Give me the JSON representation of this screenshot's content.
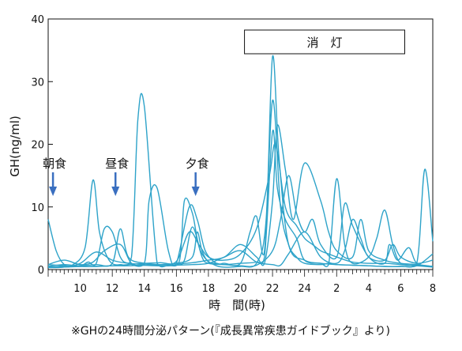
{
  "chart_data": {
    "type": "line",
    "ylabel": "GH(ng/ml)",
    "xlabel": "時　間(時)",
    "caption": "※GHの24時間分泌パターン(『成長異常疾患ガイドブック』より)",
    "ylim": [
      0,
      40
    ],
    "xlim": [
      8,
      32
    ],
    "y_ticks": [
      "0",
      "10",
      "20",
      "30",
      "40"
    ],
    "x_ticks": [
      {
        "hour": 10,
        "label": "10"
      },
      {
        "hour": 12,
        "label": "12"
      },
      {
        "hour": 14,
        "label": "14"
      },
      {
        "hour": 16,
        "label": "16"
      },
      {
        "hour": 18,
        "label": "18"
      },
      {
        "hour": 20,
        "label": "20"
      },
      {
        "hour": 22,
        "label": "22"
      },
      {
        "hour": 24,
        "label": "24"
      },
      {
        "hour": 26,
        "label": "2"
      },
      {
        "hour": 28,
        "label": "4"
      },
      {
        "hour": 30,
        "label": "6"
      },
      {
        "hour": 32,
        "label": "8"
      }
    ],
    "lights_out": {
      "label": "消　灯",
      "start": 20.25,
      "end": 30.25
    },
    "meals": [
      {
        "label": "朝食",
        "hour": 8.3
      },
      {
        "label": "昼食",
        "hour": 12.2
      },
      {
        "label": "夕食",
        "hour": 17.2
      }
    ],
    "line_color": "#2ea3c9",
    "arrow_color": "#3a6fc0",
    "series": [
      {
        "x": [
          8,
          8.5,
          9,
          9.5,
          10.3,
          10.8,
          11.2,
          11.8,
          12.5,
          13.2,
          13.6,
          14,
          14.8,
          15.5,
          16.2,
          16.5,
          17,
          17.5,
          18.5,
          20,
          21,
          21.6,
          22,
          22.4,
          23,
          24,
          25,
          26,
          27,
          28,
          29,
          30,
          31,
          32
        ],
        "y": [
          8,
          3,
          0.8,
          0.7,
          3.5,
          14.3,
          6,
          1.5,
          0.8,
          2,
          24,
          26,
          1,
          0.7,
          1.5,
          11,
          9,
          3,
          0.6,
          0.5,
          1,
          8,
          34,
          18,
          4,
          1.5,
          1,
          0.8,
          0.7,
          0.6,
          0.5,
          0.5,
          0.6,
          2.5
        ]
      },
      {
        "x": [
          8,
          9,
          10,
          10.5,
          11,
          11.5,
          12,
          12.5,
          13,
          14,
          14.3,
          14.8,
          15.5,
          16,
          16.8,
          17.3,
          17.8,
          18.5,
          19,
          20,
          20.6,
          21,
          21.5,
          22,
          22.5,
          23,
          23.5,
          24,
          25,
          25.5,
          26,
          27,
          28,
          29,
          30,
          31,
          31.5,
          32
        ],
        "y": [
          0.5,
          0.8,
          0.6,
          1.2,
          1,
          6.5,
          6,
          2,
          1,
          1,
          11,
          13,
          3,
          1,
          10,
          8,
          3,
          1,
          1,
          1,
          6,
          8.5,
          3,
          27,
          10,
          4,
          2,
          1,
          0.8,
          1,
          0.8,
          0.7,
          0.6,
          0.5,
          0.5,
          1,
          16,
          4.5
        ]
      },
      {
        "x": [
          8,
          9,
          10,
          11,
          12,
          12.5,
          13,
          14,
          15,
          16,
          17,
          17.3,
          17.6,
          18,
          18.5,
          19,
          20,
          21,
          21.5,
          22,
          22.3,
          22.8,
          23.5,
          24,
          25,
          25.5,
          26,
          26.5,
          27,
          28,
          28.5,
          29,
          29.5,
          30,
          31,
          32
        ],
        "y": [
          0.4,
          0.5,
          0.6,
          0.8,
          1,
          6.5,
          2,
          1,
          0.8,
          1,
          2,
          6,
          3,
          1.2,
          1,
          0.8,
          1,
          1.2,
          2,
          22,
          13,
          8,
          5,
          1.5,
          1,
          0.8,
          14.5,
          4,
          1,
          2,
          5,
          9.5,
          4,
          1,
          0.7,
          0.5
        ]
      },
      {
        "x": [
          8,
          9,
          10,
          11,
          12,
          13,
          14,
          15,
          16,
          16.8,
          17.4,
          18,
          19,
          20,
          21,
          21.8,
          22.2,
          22.8,
          23.5,
          24,
          24.5,
          25,
          25.5,
          26,
          27,
          28,
          28.5,
          29,
          30,
          31,
          32
        ],
        "y": [
          0.8,
          0.6,
          0.5,
          0.5,
          0.6,
          0.8,
          1,
          1.1,
          1.3,
          6,
          4,
          2,
          1.5,
          2.5,
          6.5,
          15,
          20,
          10,
          7,
          5,
          4,
          3,
          2.5,
          2,
          1.2,
          1,
          1,
          1,
          0.8,
          0.6,
          0.4
        ]
      },
      {
        "x": [
          8,
          9,
          10,
          11,
          12,
          13,
          14,
          15,
          16,
          17,
          18,
          19,
          20,
          21,
          21.5,
          22,
          22.3,
          22.8,
          23.3,
          24,
          25,
          25.5,
          26,
          27,
          27.5,
          28,
          29,
          30,
          31,
          32
        ],
        "y": [
          0.4,
          0.4,
          0.5,
          0.5,
          0.6,
          0.6,
          0.7,
          0.8,
          0.9,
          1.1,
          1.5,
          2,
          4,
          2,
          1,
          11,
          23,
          16,
          8,
          17,
          11,
          6,
          3,
          2,
          8,
          3,
          1.5,
          1,
          0.8,
          0.5
        ]
      },
      {
        "x": [
          8,
          9,
          10,
          10.8,
          11.5,
          12.5,
          13.2,
          14,
          15,
          16,
          16.5,
          17,
          17.6,
          18,
          19,
          20,
          21,
          22,
          22.5,
          23,
          23.5,
          24,
          24.5,
          25,
          26,
          26.5,
          27,
          28,
          29,
          29.3,
          29.8,
          30.5,
          31,
          32
        ],
        "y": [
          0.8,
          1.5,
          0.8,
          1.2,
          3,
          4,
          1,
          0.7,
          0.6,
          0.7,
          1.5,
          6.8,
          2,
          1,
          0.8,
          0.6,
          0.7,
          3,
          8,
          15,
          9,
          6,
          8,
          4,
          2,
          10.5,
          7,
          2,
          1,
          4,
          1.5,
          3.5,
          1,
          0.5
        ]
      },
      {
        "x": [
          8,
          9,
          10,
          11,
          12,
          13,
          14,
          15,
          16,
          17,
          18,
          19,
          20,
          21,
          22,
          22.5,
          23,
          24,
          25,
          26,
          26.5,
          27,
          27.5,
          28,
          29,
          29.5,
          30,
          31,
          32
        ],
        "y": [
          0.3,
          0.4,
          1,
          2.8,
          1.5,
          1,
          0.8,
          0.6,
          0.7,
          0.8,
          1,
          2,
          3,
          1.2,
          0.8,
          0.7,
          2.5,
          6,
          2,
          1,
          3,
          8,
          5,
          2,
          1.5,
          4,
          2,
          1,
          1.5
        ]
      }
    ]
  }
}
